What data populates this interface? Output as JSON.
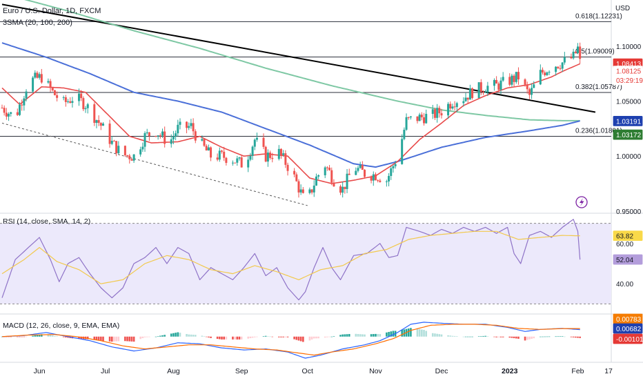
{
  "header": {
    "symbol_line": "Euro / U.S. Dollar, 1D, FXCM",
    "indicator_line": "3SMA (20, 100, 200)",
    "currency": "USD"
  },
  "price_axis": {
    "ticks": [
      {
        "value": 0.95,
        "label": "0.95000"
      },
      {
        "value": 1.0,
        "label": "1.00000"
      },
      {
        "value": 1.05,
        "label": "1.05000"
      },
      {
        "value": 1.1,
        "label": "1.10000"
      }
    ],
    "range": [
      0.948,
      1.142
    ]
  },
  "price_tags": [
    {
      "label": "1.08413",
      "value": 1.08413,
      "color": "#e53935",
      "text_color": "#ffffff"
    },
    {
      "label": "1.08125",
      "value": 1.0775,
      "color": "#ffffff",
      "text_color": "#e53935"
    },
    {
      "label": "03:29:19",
      "value": 1.0692,
      "color": "#ffffff",
      "text_color": "#e53935"
    },
    {
      "label": "1.03191",
      "value": 1.03191,
      "color": "#1e40af",
      "text_color": "#ffffff"
    },
    {
      "label": "1.03172",
      "value": 1.0195,
      "color": "#2e7d32",
      "text_color": "#ffffff"
    }
  ],
  "fib_levels": [
    {
      "label": "0.618(1.12231)",
      "value": 1.12231
    },
    {
      "label": "0.5(1.09009)",
      "value": 1.09009
    },
    {
      "label": "0.382(1.05787)",
      "value": 1.05787
    },
    {
      "label": "0.236(1.01801)",
      "value": 1.01801
    }
  ],
  "chart_data": {
    "type": "candlestick",
    "x_tick_labels": [
      "Jun",
      "Jul",
      "Aug",
      "Sep",
      "Oct",
      "Nov",
      "Dec",
      "2023",
      "Feb",
      "17"
    ],
    "x_tick_days": [
      17,
      47,
      78,
      109,
      139,
      170,
      200,
      231,
      262,
      276
    ],
    "start_date": "2022-05-16",
    "last_day": 263,
    "ohlc_anchors": [
      [
        0,
        1.044
      ],
      [
        6,
        1.035
      ],
      [
        12,
        1.068
      ],
      [
        18,
        1.072
      ],
      [
        23,
        1.058
      ],
      [
        28,
        1.048
      ],
      [
        33,
        1.054
      ],
      [
        38,
        1.047
      ],
      [
        45,
        1.028
      ],
      [
        50,
        1.012
      ],
      [
        55,
        1.001
      ],
      [
        60,
        1.0
      ],
      [
        65,
        1.018
      ],
      [
        70,
        1.023
      ],
      [
        76,
        1.012
      ],
      [
        80,
        1.025
      ],
      [
        86,
        1.027
      ],
      [
        90,
        1.012
      ],
      [
        95,
        1.0
      ],
      [
        100,
        1.0
      ],
      [
        105,
        0.997
      ],
      [
        110,
        0.992
      ],
      [
        115,
        1.015
      ],
      [
        120,
        1.0
      ],
      [
        126,
        1.003
      ],
      [
        132,
        0.985
      ],
      [
        137,
        0.962
      ],
      [
        140,
        0.965
      ],
      [
        143,
        0.98
      ],
      [
        147,
        0.992
      ],
      [
        152,
        0.975
      ],
      [
        155,
        0.97
      ],
      [
        160,
        0.99
      ],
      [
        166,
        0.983
      ],
      [
        170,
        0.983
      ],
      [
        175,
        0.978
      ],
      [
        180,
        1.0
      ],
      [
        184,
        1.032
      ],
      [
        190,
        1.035
      ],
      [
        196,
        1.037
      ],
      [
        200,
        1.041
      ],
      [
        205,
        1.05
      ],
      [
        210,
        1.053
      ],
      [
        215,
        1.06
      ],
      [
        220,
        1.063
      ],
      [
        225,
        1.064
      ],
      [
        230,
        1.068
      ],
      [
        235,
        1.072
      ],
      [
        240,
        1.055
      ],
      [
        245,
        1.075
      ],
      [
        250,
        1.082
      ],
      [
        255,
        1.085
      ],
      [
        260,
        1.09
      ],
      [
        262,
        1.098
      ],
      [
        263,
        1.085
      ]
    ],
    "sma_20_anchors": [
      [
        0,
        1.062
      ],
      [
        8,
        1.047
      ],
      [
        18,
        1.063
      ],
      [
        28,
        1.062
      ],
      [
        38,
        1.058
      ],
      [
        48,
        1.038
      ],
      [
        58,
        1.018
      ],
      [
        68,
        1.012
      ],
      [
        80,
        1.013
      ],
      [
        90,
        1.018
      ],
      [
        100,
        1.008
      ],
      [
        110,
        1.0
      ],
      [
        120,
        1.002
      ],
      [
        130,
        1.0
      ],
      [
        140,
        0.98
      ],
      [
        150,
        0.975
      ],
      [
        160,
        0.978
      ],
      [
        170,
        0.982
      ],
      [
        180,
        0.995
      ],
      [
        190,
        1.015
      ],
      [
        200,
        1.03
      ],
      [
        210,
        1.046
      ],
      [
        220,
        1.055
      ],
      [
        230,
        1.062
      ],
      [
        240,
        1.065
      ],
      [
        250,
        1.072
      ],
      [
        255,
        1.077
      ],
      [
        263,
        1.084
      ]
    ],
    "sma_100_anchors": [
      [
        0,
        1.103
      ],
      [
        20,
        1.09
      ],
      [
        40,
        1.075
      ],
      [
        60,
        1.058
      ],
      [
        80,
        1.05
      ],
      [
        100,
        1.04
      ],
      [
        120,
        1.025
      ],
      [
        140,
        1.01
      ],
      [
        160,
        0.993
      ],
      [
        170,
        0.99
      ],
      [
        180,
        0.995
      ],
      [
        200,
        1.008
      ],
      [
        220,
        1.017
      ],
      [
        240,
        1.023
      ],
      [
        255,
        1.028
      ],
      [
        263,
        1.032
      ]
    ],
    "sma_200_anchors": [
      [
        0,
        1.148
      ],
      [
        30,
        1.132
      ],
      [
        60,
        1.114
      ],
      [
        90,
        1.098
      ],
      [
        120,
        1.08
      ],
      [
        150,
        1.064
      ],
      [
        180,
        1.05
      ],
      [
        200,
        1.042
      ],
      [
        220,
        1.037
      ],
      [
        240,
        1.033
      ],
      [
        255,
        1.0322
      ],
      [
        263,
        1.0322
      ]
    ],
    "trendline_solid": [
      [
        0,
        1.138
      ],
      [
        270,
        1.04
      ]
    ],
    "trendline_dashed": [
      [
        0,
        1.03
      ],
      [
        139,
        0.955
      ]
    ],
    "rsi": {
      "label": "RSI (14, close, SMA, 14, 2)",
      "ticks": [
        {
          "value": 60,
          "label": "60.00"
        },
        {
          "value": 40,
          "label": "40.00"
        }
      ],
      "upper_band": 70,
      "lower_band": 30,
      "range": [
        25,
        75
      ],
      "current_sma": {
        "label": "63.82",
        "value": 63.82
      },
      "current_rsi": {
        "label": "52.04",
        "value": 52.04
      },
      "rsi_anchors": [
        [
          0,
          33
        ],
        [
          6,
          52
        ],
        [
          12,
          58
        ],
        [
          17,
          63
        ],
        [
          22,
          52
        ],
        [
          26,
          41
        ],
        [
          30,
          50
        ],
        [
          35,
          53
        ],
        [
          40,
          45
        ],
        [
          45,
          38
        ],
        [
          50,
          33
        ],
        [
          55,
          38
        ],
        [
          60,
          50
        ],
        [
          65,
          53
        ],
        [
          70,
          58
        ],
        [
          75,
          50
        ],
        [
          80,
          58
        ],
        [
          85,
          55
        ],
        [
          90,
          42
        ],
        [
          95,
          48
        ],
        [
          100,
          45
        ],
        [
          105,
          42
        ],
        [
          110,
          48
        ],
        [
          115,
          55
        ],
        [
          120,
          44
        ],
        [
          125,
          48
        ],
        [
          130,
          38
        ],
        [
          135,
          32
        ],
        [
          138,
          36
        ],
        [
          142,
          48
        ],
        [
          146,
          58
        ],
        [
          150,
          48
        ],
        [
          154,
          42
        ],
        [
          160,
          54
        ],
        [
          166,
          55
        ],
        [
          172,
          60
        ],
        [
          176,
          53
        ],
        [
          180,
          54
        ],
        [
          184,
          68
        ],
        [
          190,
          66
        ],
        [
          195,
          64
        ],
        [
          200,
          67
        ],
        [
          205,
          65
        ],
        [
          210,
          68
        ],
        [
          215,
          66
        ],
        [
          220,
          68
        ],
        [
          225,
          65
        ],
        [
          230,
          68
        ],
        [
          233,
          55
        ],
        [
          236,
          50
        ],
        [
          240,
          64
        ],
        [
          245,
          66
        ],
        [
          250,
          63
        ],
        [
          255,
          68
        ],
        [
          260,
          72
        ],
        [
          262,
          66
        ],
        [
          263,
          52
        ]
      ],
      "sma_anchors": [
        [
          0,
          45
        ],
        [
          10,
          52
        ],
        [
          17,
          58
        ],
        [
          25,
          51
        ],
        [
          35,
          47
        ],
        [
          45,
          40
        ],
        [
          55,
          42
        ],
        [
          65,
          50
        ],
        [
          75,
          54
        ],
        [
          85,
          52
        ],
        [
          95,
          47
        ],
        [
          105,
          45
        ],
        [
          115,
          49
        ],
        [
          125,
          46
        ],
        [
          135,
          42
        ],
        [
          145,
          47
        ],
        [
          155,
          49
        ],
        [
          165,
          55
        ],
        [
          175,
          57
        ],
        [
          185,
          62
        ],
        [
          195,
          64
        ],
        [
          205,
          65
        ],
        [
          215,
          66
        ],
        [
          225,
          66
        ],
        [
          235,
          62
        ],
        [
          245,
          63
        ],
        [
          255,
          64
        ],
        [
          263,
          63.8
        ]
      ]
    },
    "macd": {
      "label": "MACD (12, 26, close, 9, EMA, EMA)",
      "tags": [
        {
          "label": "0.00783",
          "color": "#f57c00"
        },
        {
          "label": "0.00682",
          "color": "#1e40af"
        },
        {
          "label": "-0.00101",
          "color": "#e53935"
        }
      ],
      "range": [
        -0.025,
        0.022
      ],
      "macd_anchors": [
        [
          0,
          0.0
        ],
        [
          10,
          0.001
        ],
        [
          20,
          0.004
        ],
        [
          30,
          0.0
        ],
        [
          40,
          -0.004
        ],
        [
          50,
          -0.01
        ],
        [
          60,
          -0.014
        ],
        [
          70,
          -0.011
        ],
        [
          80,
          -0.006
        ],
        [
          90,
          -0.007
        ],
        [
          100,
          -0.011
        ],
        [
          110,
          -0.013
        ],
        [
          120,
          -0.012
        ],
        [
          130,
          -0.015
        ],
        [
          138,
          -0.021
        ],
        [
          145,
          -0.018
        ],
        [
          155,
          -0.012
        ],
        [
          165,
          -0.008
        ],
        [
          172,
          -0.004
        ],
        [
          180,
          0.004
        ],
        [
          186,
          0.012
        ],
        [
          192,
          0.014
        ],
        [
          200,
          0.013
        ],
        [
          210,
          0.012
        ],
        [
          220,
          0.012
        ],
        [
          230,
          0.009
        ],
        [
          238,
          0.005
        ],
        [
          245,
          0.007
        ],
        [
          255,
          0.008
        ],
        [
          263,
          0.0068
        ]
      ],
      "signal_anchors": [
        [
          0,
          0.0
        ],
        [
          12,
          0.0015
        ],
        [
          24,
          0.002
        ],
        [
          34,
          0.0
        ],
        [
          45,
          -0.004
        ],
        [
          55,
          -0.009
        ],
        [
          65,
          -0.012
        ],
        [
          75,
          -0.01
        ],
        [
          85,
          -0.008
        ],
        [
          95,
          -0.008
        ],
        [
          105,
          -0.01
        ],
        [
          115,
          -0.012
        ],
        [
          125,
          -0.013
        ],
        [
          135,
          -0.016
        ],
        [
          142,
          -0.018
        ],
        [
          150,
          -0.015
        ],
        [
          160,
          -0.012
        ],
        [
          170,
          -0.007
        ],
        [
          178,
          -0.002
        ],
        [
          186,
          0.006
        ],
        [
          195,
          0.011
        ],
        [
          205,
          0.012
        ],
        [
          215,
          0.012
        ],
        [
          225,
          0.011
        ],
        [
          235,
          0.008
        ],
        [
          245,
          0.007
        ],
        [
          255,
          0.0078
        ],
        [
          263,
          0.0078
        ]
      ]
    }
  }
}
